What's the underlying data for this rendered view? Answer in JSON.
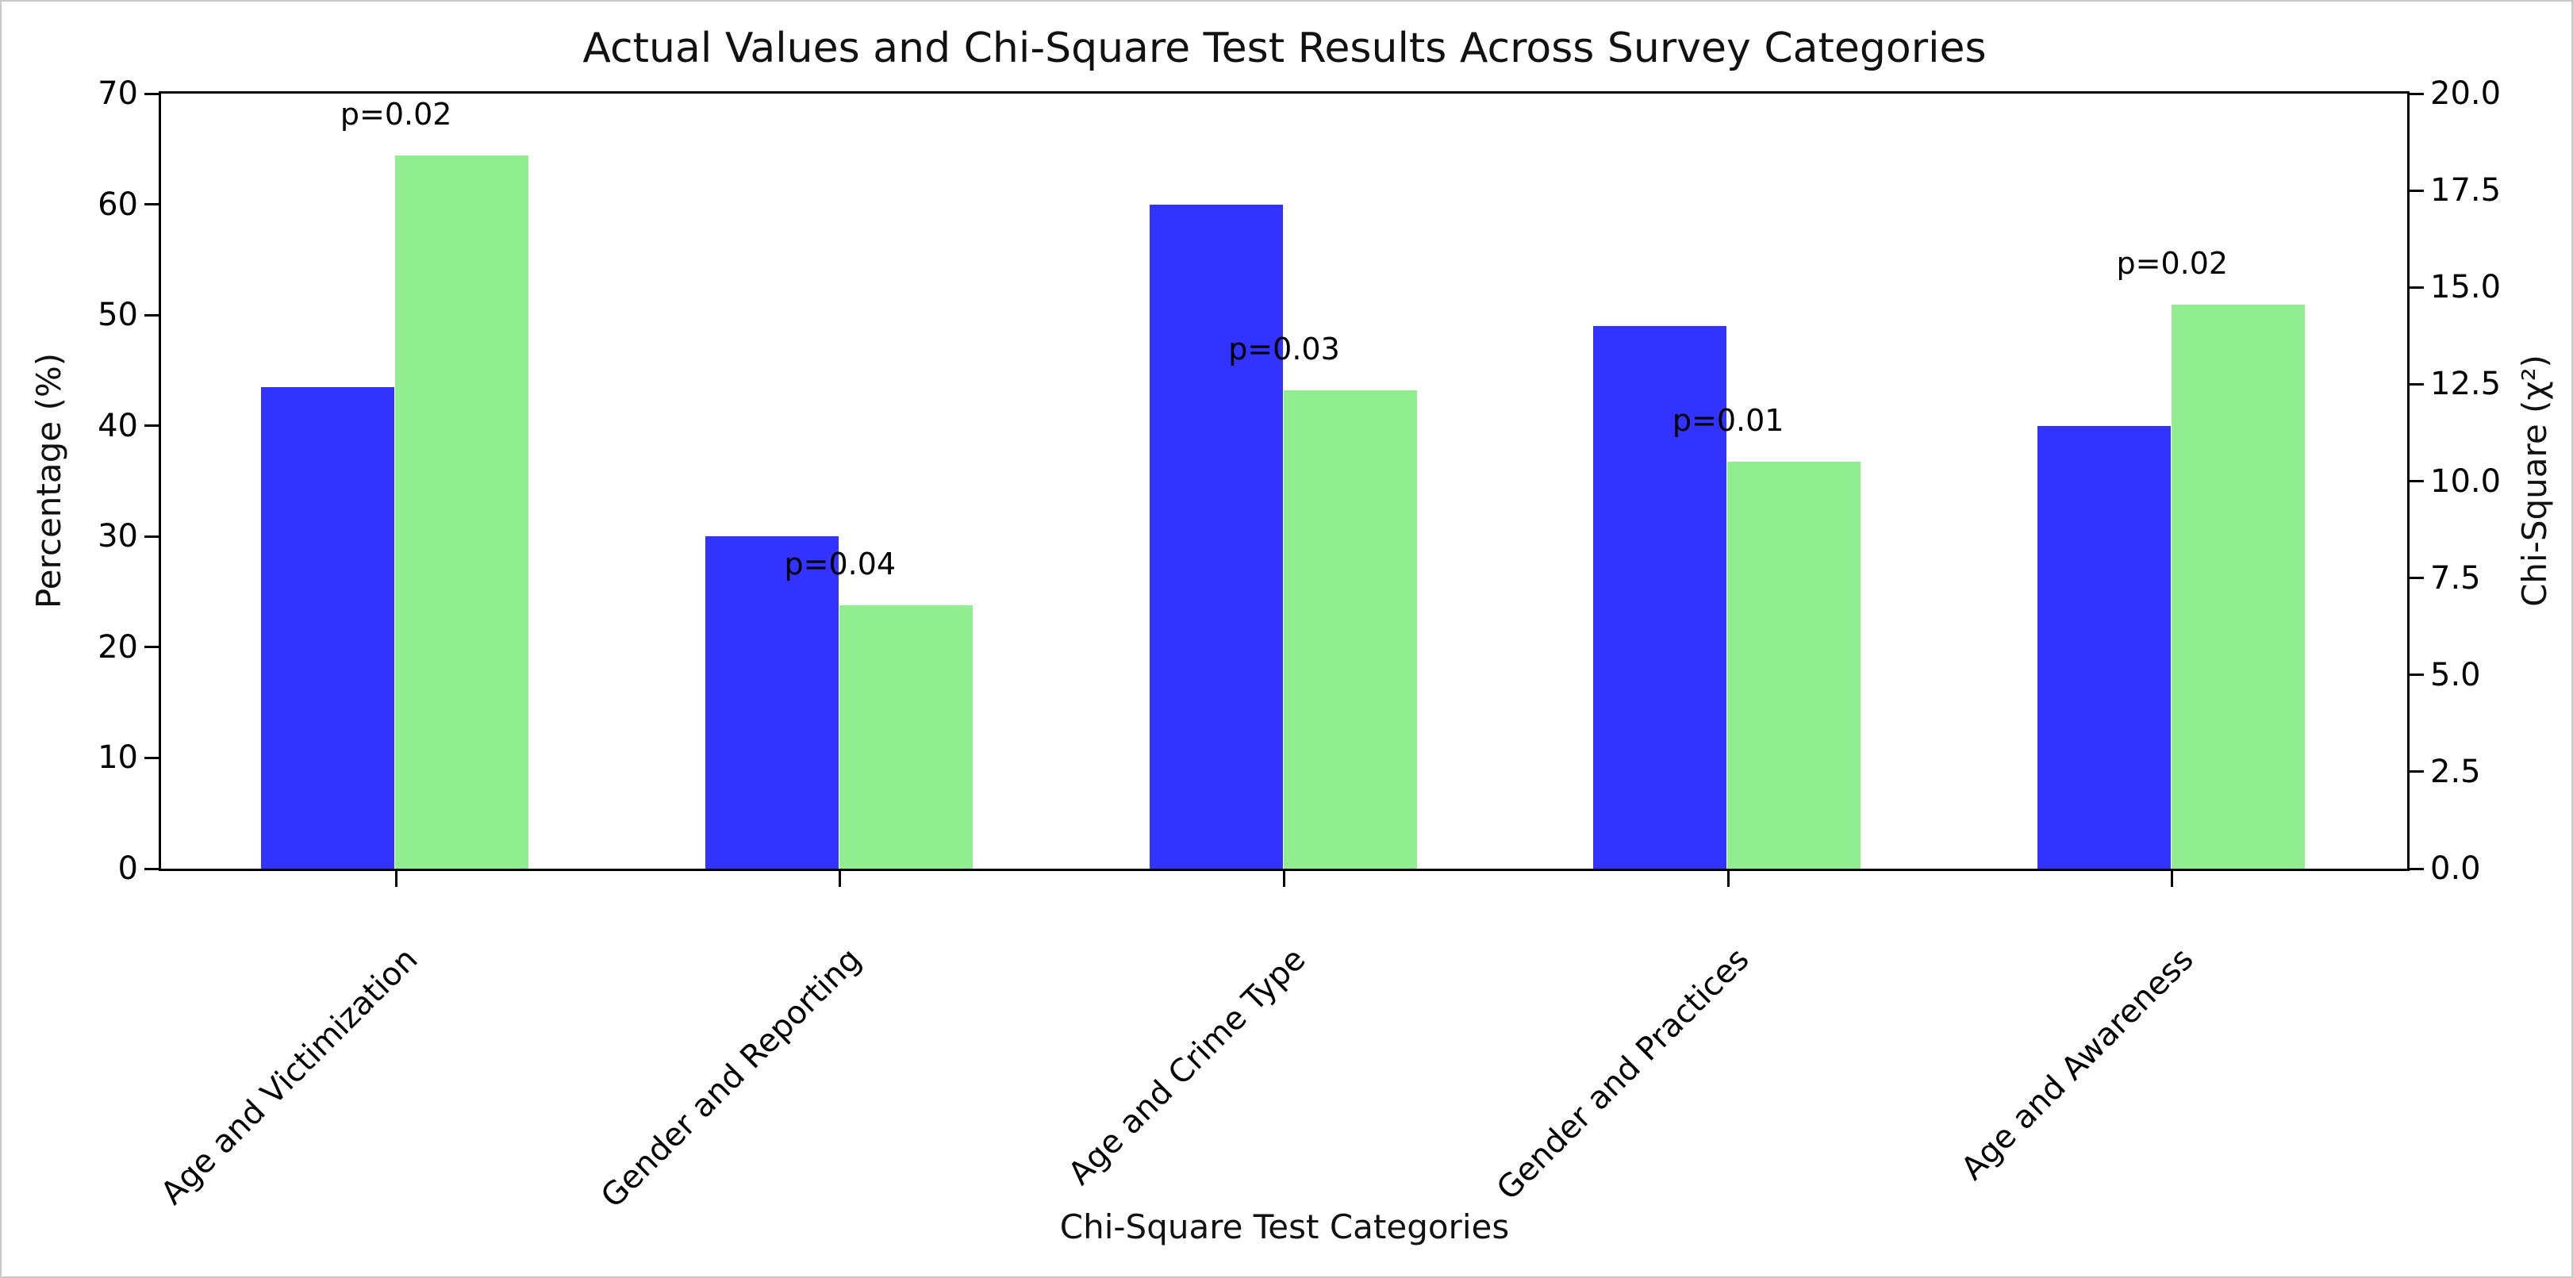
{
  "figure": {
    "background": "#ffffff",
    "text_color": "#000000"
  },
  "chart_data": {
    "type": "bar",
    "title": "Actual Values and Chi-Square Test Results Across Survey Categories",
    "xlabel": "Chi-Square Test Categories",
    "ylabel_left": "Percentage (%)",
    "ylabel_right": "Chi-Square (χ²)",
    "categories": [
      "Age and Victimization",
      "Gender and Reporting",
      "Age and Crime Type",
      "Gender and Practices",
      "Age and Awareness"
    ],
    "series": [
      {
        "name": "Percentage",
        "axis": "left",
        "color": "#3333ff",
        "values": [
          43.5,
          30,
          60,
          49,
          40
        ]
      },
      {
        "name": "Chi-Square",
        "axis": "right",
        "color": "#90ee90",
        "values": [
          18.4,
          6.8,
          12.35,
          10.5,
          14.55
        ]
      }
    ],
    "annotations": [
      "p=0.02",
      "p=0.04",
      "p=0.03",
      "p=0.01",
      "p=0.02"
    ],
    "left_axis": {
      "min": 0,
      "max": 70,
      "tick_labels": [
        "0",
        "10",
        "20",
        "30",
        "40",
        "50",
        "60",
        "70"
      ]
    },
    "right_axis": {
      "min": 0,
      "max": 20,
      "tick_labels": [
        "0.0",
        "2.5",
        "5.0",
        "7.5",
        "10.0",
        "12.5",
        "15.0",
        "17.5",
        "20.0"
      ]
    },
    "grid": false,
    "legend": false,
    "xtick_rotation_deg": 45
  }
}
